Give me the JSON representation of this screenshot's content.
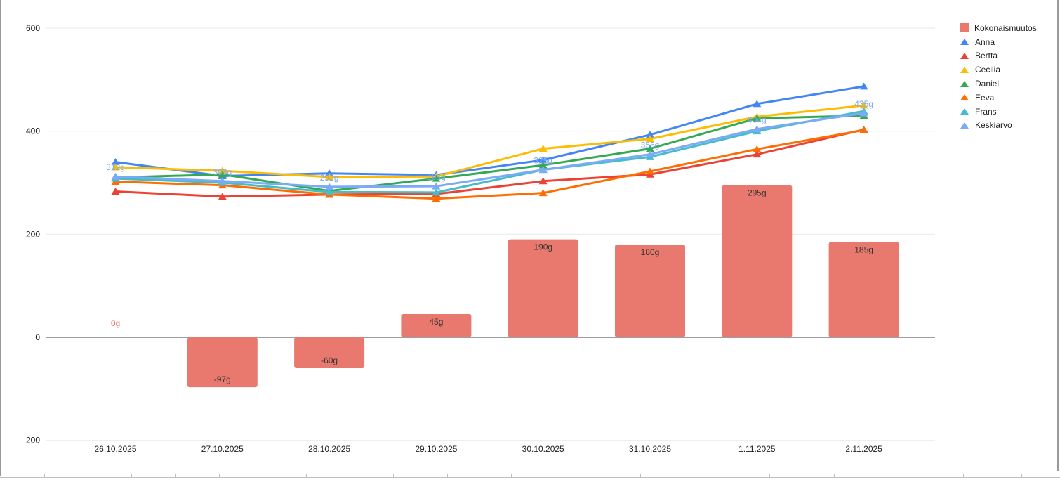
{
  "chart_data": {
    "type": "combo (bar + line)",
    "categories": [
      "26.10.2025",
      "27.10.2025",
      "28.10.2025",
      "29.10.2025",
      "30.10.2025",
      "31.10.2025",
      "1.11.2025",
      "2.11.2025"
    ],
    "bar_series": {
      "name": "Kokonaismuutos",
      "color": "#E9796F",
      "values": [
        0,
        -97,
        -60,
        45,
        190,
        180,
        295,
        185
      ],
      "labels": [
        "0g",
        "-97g",
        "-60g",
        "45g",
        "190g",
        "180g",
        "295g",
        "185g"
      ]
    },
    "line_series": [
      {
        "name": "Anna",
        "color": "#4285F4",
        "values": [
          340,
          313,
          318,
          315,
          344,
          393,
          453,
          487
        ]
      },
      {
        "name": "Bertta",
        "color": "#EA4335",
        "values": [
          283,
          273,
          277,
          278,
          303,
          316,
          355,
          403
        ]
      },
      {
        "name": "Cecilia",
        "color": "#FBBC04",
        "values": [
          330,
          323,
          311,
          312,
          366,
          385,
          428,
          450
        ]
      },
      {
        "name": "Daniel",
        "color": "#34A853",
        "values": [
          310,
          316,
          284,
          308,
          334,
          366,
          425,
          430
        ]
      },
      {
        "name": "Eeva",
        "color": "#FF6D01",
        "values": [
          302,
          295,
          277,
          269,
          280,
          322,
          365,
          402
        ]
      },
      {
        "name": "Frans",
        "color": "#46BDC6",
        "values": [
          308,
          300,
          282,
          281,
          325,
          350,
          400,
          439
        ]
      },
      {
        "name": "Keskiarvo",
        "color": "#7BAAF7",
        "values": [
          312,
          303,
          292,
          293,
          325,
          355,
          404,
          435
        ],
        "labels": [
          "312g",
          "303g",
          "292g",
          "293g",
          "325g",
          "355g",
          "404g",
          "435g"
        ]
      }
    ],
    "y_axis": {
      "ticks": [
        600,
        400,
        200,
        0,
        -200
      ],
      "min": -200,
      "max": 600
    },
    "x_axis_label_color": "#212121",
    "grid": true,
    "gridline_color": "#ececec",
    "zero_line_color": "#9e9e9e",
    "bar_label_color_inside": "#333333",
    "legend_position": "right"
  }
}
